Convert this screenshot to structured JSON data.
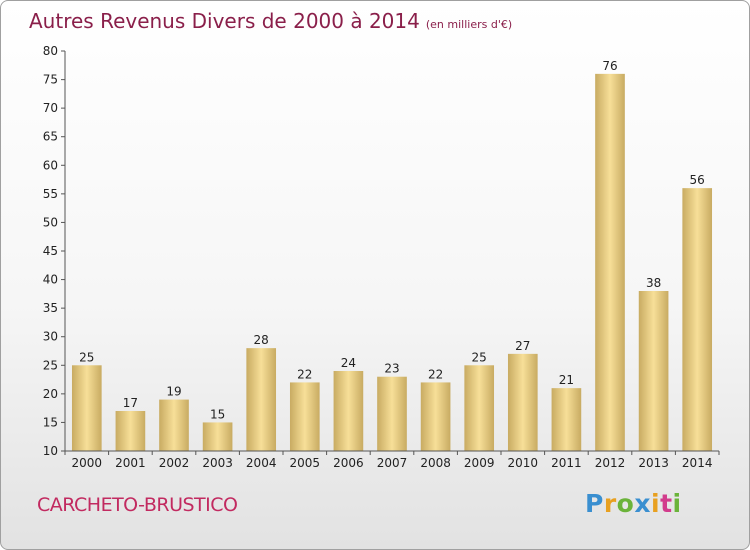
{
  "header": {
    "title": "Autres Revenus Divers de 2000 à 2014",
    "unit": "(en milliers d'€)"
  },
  "footer": {
    "commune": "CARCHETO-BRUSTICO",
    "logo_letters": [
      {
        "char": "P",
        "color": "#3a8fd0"
      },
      {
        "char": "r",
        "color": "#e8a020"
      },
      {
        "char": "o",
        "color": "#6bb33a"
      },
      {
        "char": "x",
        "color": "#3a8fd0"
      },
      {
        "char": "i",
        "color": "#e8a020"
      },
      {
        "char": "t",
        "color": "#d23c8c"
      },
      {
        "char": "i",
        "color": "#6bb33a"
      }
    ]
  },
  "chart_data": {
    "type": "bar",
    "categories": [
      "2000",
      "2001",
      "2002",
      "2003",
      "2004",
      "2005",
      "2006",
      "2007",
      "2008",
      "2009",
      "2010",
      "2011",
      "2012",
      "2013",
      "2014"
    ],
    "values": [
      25,
      17,
      19,
      15,
      28,
      22,
      24,
      23,
      22,
      25,
      27,
      21,
      76,
      38,
      56
    ],
    "ylim": [
      10,
      80
    ],
    "yticks": [
      10,
      15,
      20,
      25,
      30,
      35,
      40,
      45,
      50,
      55,
      60,
      65,
      70,
      75,
      80
    ],
    "grid": false,
    "bar_colors": {
      "light": "#f7df98",
      "dark": "#c8ab62"
    }
  }
}
